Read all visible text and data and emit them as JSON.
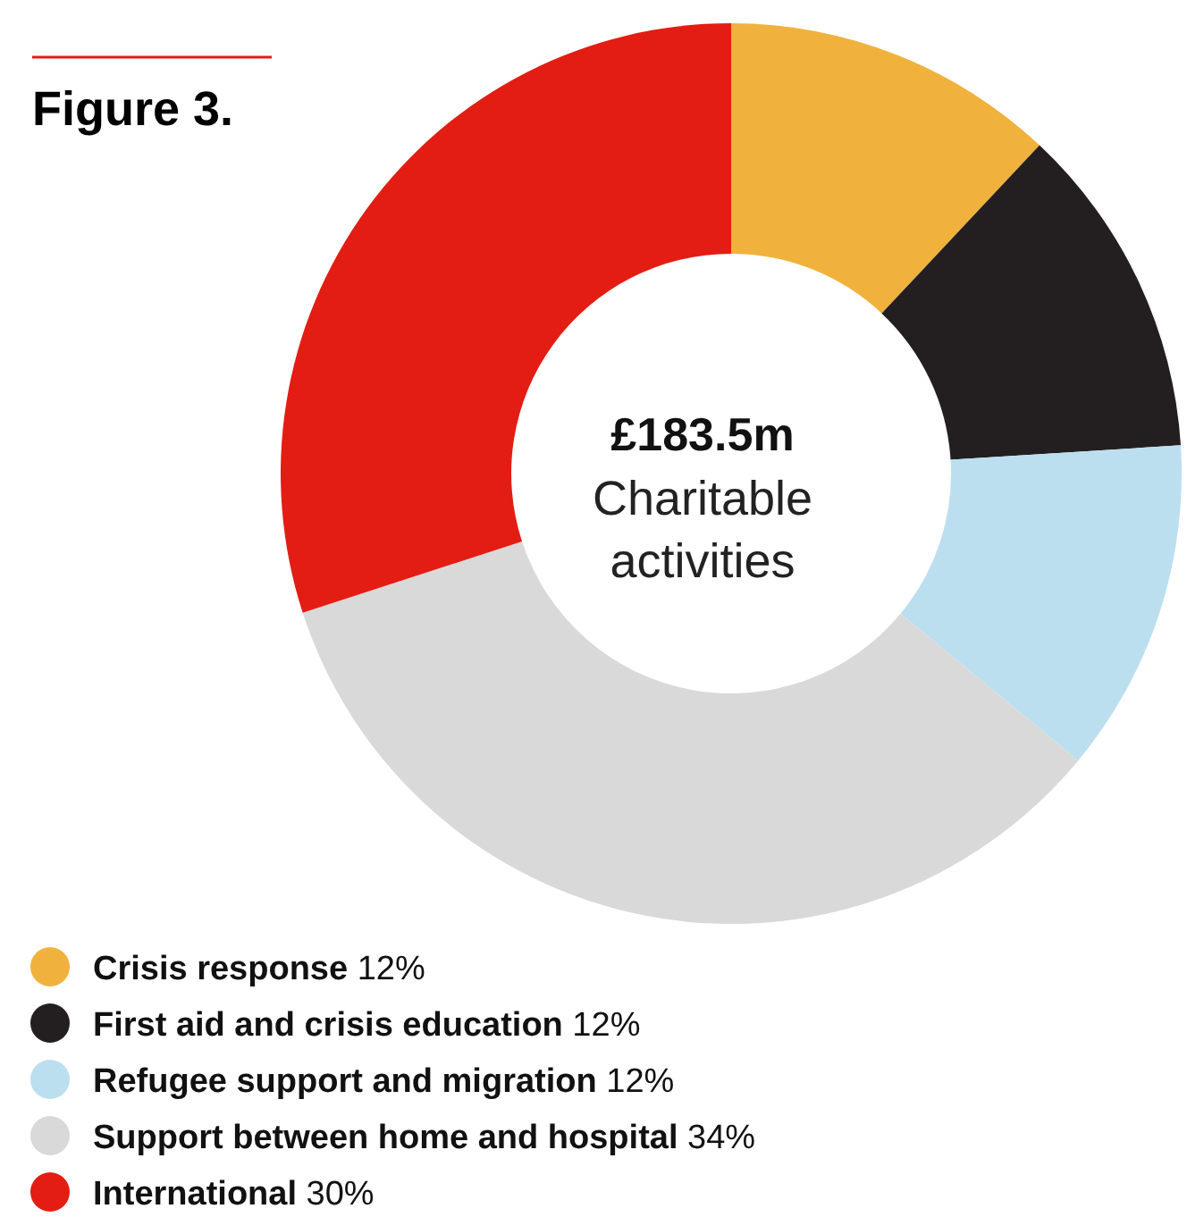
{
  "chart_data": {
    "type": "donut",
    "title": "Figure 3.",
    "categories": [
      "Crisis response",
      "First aid and crisis education",
      "Refugee support and migration",
      "Support between home and hospital",
      "International"
    ],
    "values": [
      12,
      12,
      12,
      34,
      30
    ],
    "value_labels": [
      "12%",
      "12%",
      "12%",
      "34%",
      "30%"
    ],
    "colors": [
      "#f0b23c",
      "#231f20",
      "#bcdff0",
      "#d9d9d9",
      "#e31d13"
    ],
    "annotations": [
      "£183.5m",
      "Charitable activities"
    ],
    "legend": "bottom left"
  }
}
